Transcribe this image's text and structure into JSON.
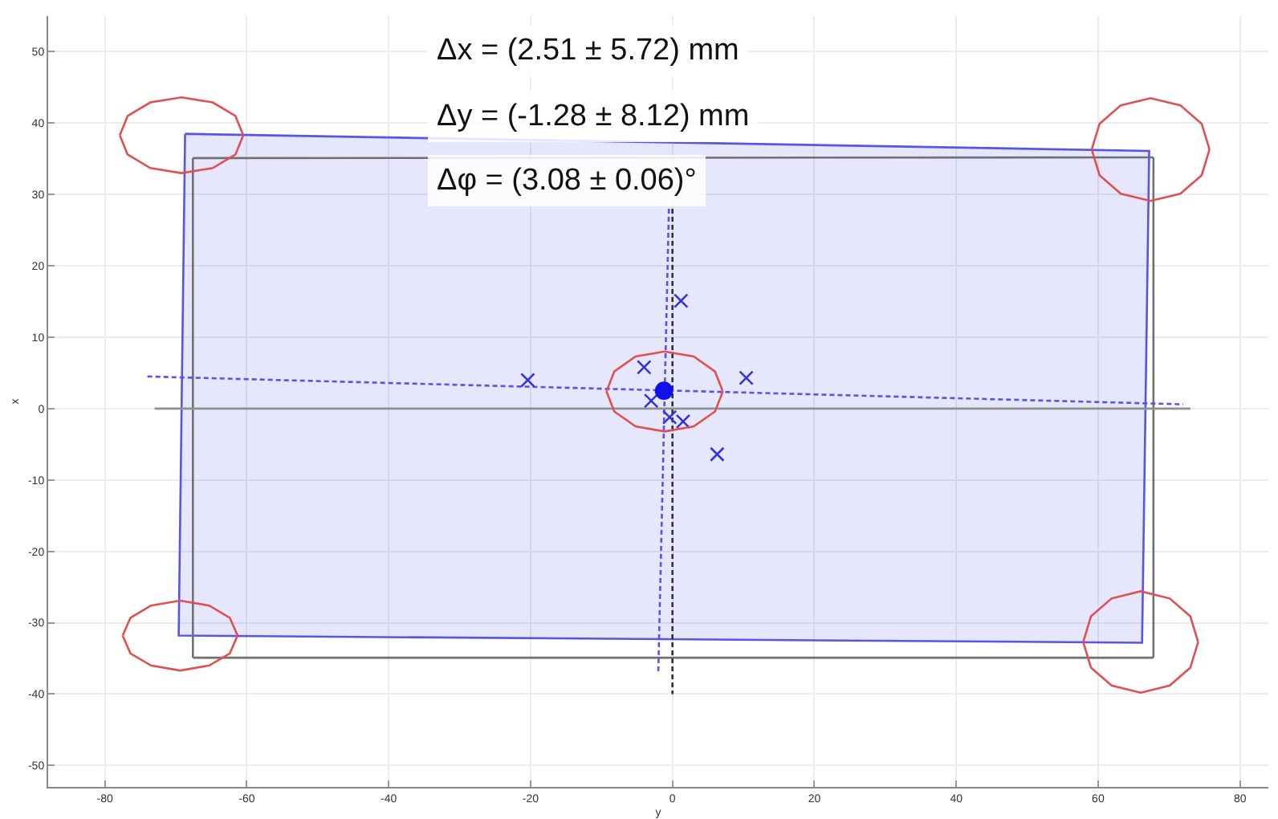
{
  "chart_data": {
    "type": "line",
    "xlabel": "y",
    "ylabel": "x",
    "xlim": [
      -88,
      84
    ],
    "ylim": [
      -53,
      55
    ],
    "xticks": [
      -80,
      -60,
      -40,
      -20,
      0,
      20,
      40,
      60,
      80
    ],
    "yticks": [
      -50,
      -40,
      -30,
      -20,
      -10,
      0,
      10,
      20,
      30,
      40,
      50
    ],
    "grid": true,
    "annotations": [
      "Δx = (2.51 ± 5.72) mm",
      "Δy = (-1.28 ± 8.12) mm",
      "Δφ = (3.08 ± 0.06)°"
    ],
    "series": [
      {
        "type": "area",
        "color": "#5555ee",
        "line_style": "solid",
        "marker": "none",
        "x": [
          -68.7,
          67.2,
          66.2,
          -69.6,
          -68.7
        ],
        "values": [
          38.5,
          36.1,
          -32.8,
          -31.8,
          38.5
        ]
      },
      {
        "color": "#707070",
        "line_style": "solid",
        "marker": "none",
        "x": [
          -67.6,
          67.8
        ],
        "values": [
          35.1,
          35.2
        ]
      },
      {
        "color": "#707070",
        "line_style": "solid",
        "marker": "none",
        "x": [
          -67.6,
          67.8
        ],
        "values": [
          -34.9,
          -34.9
        ]
      },
      {
        "color": "#707070",
        "line_style": "solid",
        "marker": "none",
        "x": [
          -67.6,
          -67.6
        ],
        "values": [
          35.1,
          -34.9
        ]
      },
      {
        "color": "#707070",
        "line_style": "solid",
        "marker": "none",
        "x": [
          67.8,
          67.8
        ],
        "values": [
          35.2,
          -34.9
        ]
      },
      {
        "color": "#909090",
        "line_style": "solid",
        "marker": "none",
        "x": [
          -73,
          73
        ],
        "values": [
          0,
          0
        ]
      },
      {
        "color": "#303030",
        "line_style": "dashed",
        "marker": "none",
        "x": [
          0,
          0
        ],
        "values": [
          28,
          -40
        ]
      },
      {
        "color": "#5555ee",
        "line_style": "dashed",
        "marker": "none",
        "x": [
          -0.5,
          -2
        ],
        "values": [
          28,
          -37
        ]
      },
      {
        "color": "#5555ee",
        "line_style": "dashed",
        "marker": "none",
        "x": [
          -74,
          72
        ],
        "values": [
          4.5,
          0.6
        ]
      },
      {
        "type": "scatter",
        "color": "#3333dd",
        "marker": "cross",
        "x": [
          1.2,
          -20.4,
          -4.0,
          10.4,
          -3.0,
          -0.4,
          1.5,
          6.3
        ],
        "values": [
          15.1,
          4.0,
          5.8,
          4.3,
          1.1,
          -1.2,
          -1.8,
          -6.4
        ]
      },
      {
        "type": "scatter",
        "color": "#1111ee",
        "marker": "circle",
        "x": [
          -1.2
        ],
        "values": [
          2.5
        ]
      },
      {
        "color": "#e05050",
        "line_style": "solid",
        "marker": "none",
        "x": [
          -77.9,
          -76.8,
          -73.6,
          -69.2,
          -64.8,
          -61.6,
          -60.5
        ],
        "values": [
          38.3,
          41.0,
          42.9,
          43.6,
          42.9,
          41.0,
          38.3
        ]
      },
      {
        "color": "#e05050",
        "line_style": "solid",
        "marker": "none",
        "x": [
          -77.9,
          -76.8,
          -73.6,
          -69.2,
          -64.8,
          -61.6,
          -60.5
        ],
        "values": [
          38.3,
          35.6,
          33.7,
          33.0,
          33.7,
          35.6,
          38.3
        ]
      },
      {
        "color": "#e05050",
        "line_style": "solid",
        "marker": "none",
        "x": [
          59.1,
          60.2,
          63.2,
          67.4,
          71.6,
          74.6,
          75.7
        ],
        "values": [
          36.3,
          39.9,
          42.5,
          43.5,
          42.5,
          39.9,
          36.3
        ]
      },
      {
        "color": "#e05050",
        "line_style": "solid",
        "marker": "none",
        "x": [
          59.1,
          60.2,
          63.2,
          67.4,
          71.6,
          74.6,
          75.7
        ],
        "values": [
          36.3,
          32.7,
          30.1,
          29.1,
          30.1,
          32.7,
          36.3
        ]
      },
      {
        "color": "#e05050",
        "line_style": "solid",
        "marker": "none",
        "x": [
          -77.5,
          -76.4,
          -73.5,
          -69.4,
          -65.3,
          -62.4,
          -61.3
        ],
        "values": [
          -31.8,
          -29.3,
          -27.6,
          -26.9,
          -27.6,
          -29.3,
          -31.8
        ]
      },
      {
        "color": "#e05050",
        "line_style": "solid",
        "marker": "none",
        "x": [
          -77.5,
          -76.4,
          -73.5,
          -69.4,
          -65.3,
          -62.4,
          -61.3
        ],
        "values": [
          -31.8,
          -34.3,
          -36.0,
          -36.7,
          -36.0,
          -34.3,
          -31.8
        ]
      },
      {
        "color": "#e05050",
        "line_style": "solid",
        "marker": "none",
        "x": [
          57.9,
          59.0,
          61.9,
          66.0,
          70.1,
          73.0,
          74.1
        ],
        "values": [
          -32.7,
          -29.1,
          -26.6,
          -25.6,
          -26.6,
          -29.1,
          -32.7
        ]
      },
      {
        "color": "#e05050",
        "line_style": "solid",
        "marker": "none",
        "x": [
          57.9,
          59.0,
          61.9,
          66.0,
          70.1,
          73.0,
          74.1
        ],
        "values": [
          -32.7,
          -36.3,
          -38.8,
          -39.8,
          -38.8,
          -36.3,
          -32.7
        ]
      },
      {
        "color": "#e05050",
        "line_style": "solid",
        "marker": "none",
        "x": [
          -9.3,
          -8.2,
          -5.2,
          -1.1,
          3.0,
          6.0,
          7.1
        ],
        "values": [
          2.4,
          5.2,
          7.3,
          8.0,
          7.3,
          5.2,
          2.4
        ]
      },
      {
        "color": "#e05050",
        "line_style": "solid",
        "marker": "none",
        "x": [
          -9.3,
          -8.2,
          -5.2,
          -1.1,
          3.0,
          6.0,
          7.1
        ],
        "values": [
          2.4,
          -0.4,
          -2.5,
          -3.2,
          -2.5,
          -0.4,
          2.4
        ]
      }
    ]
  }
}
